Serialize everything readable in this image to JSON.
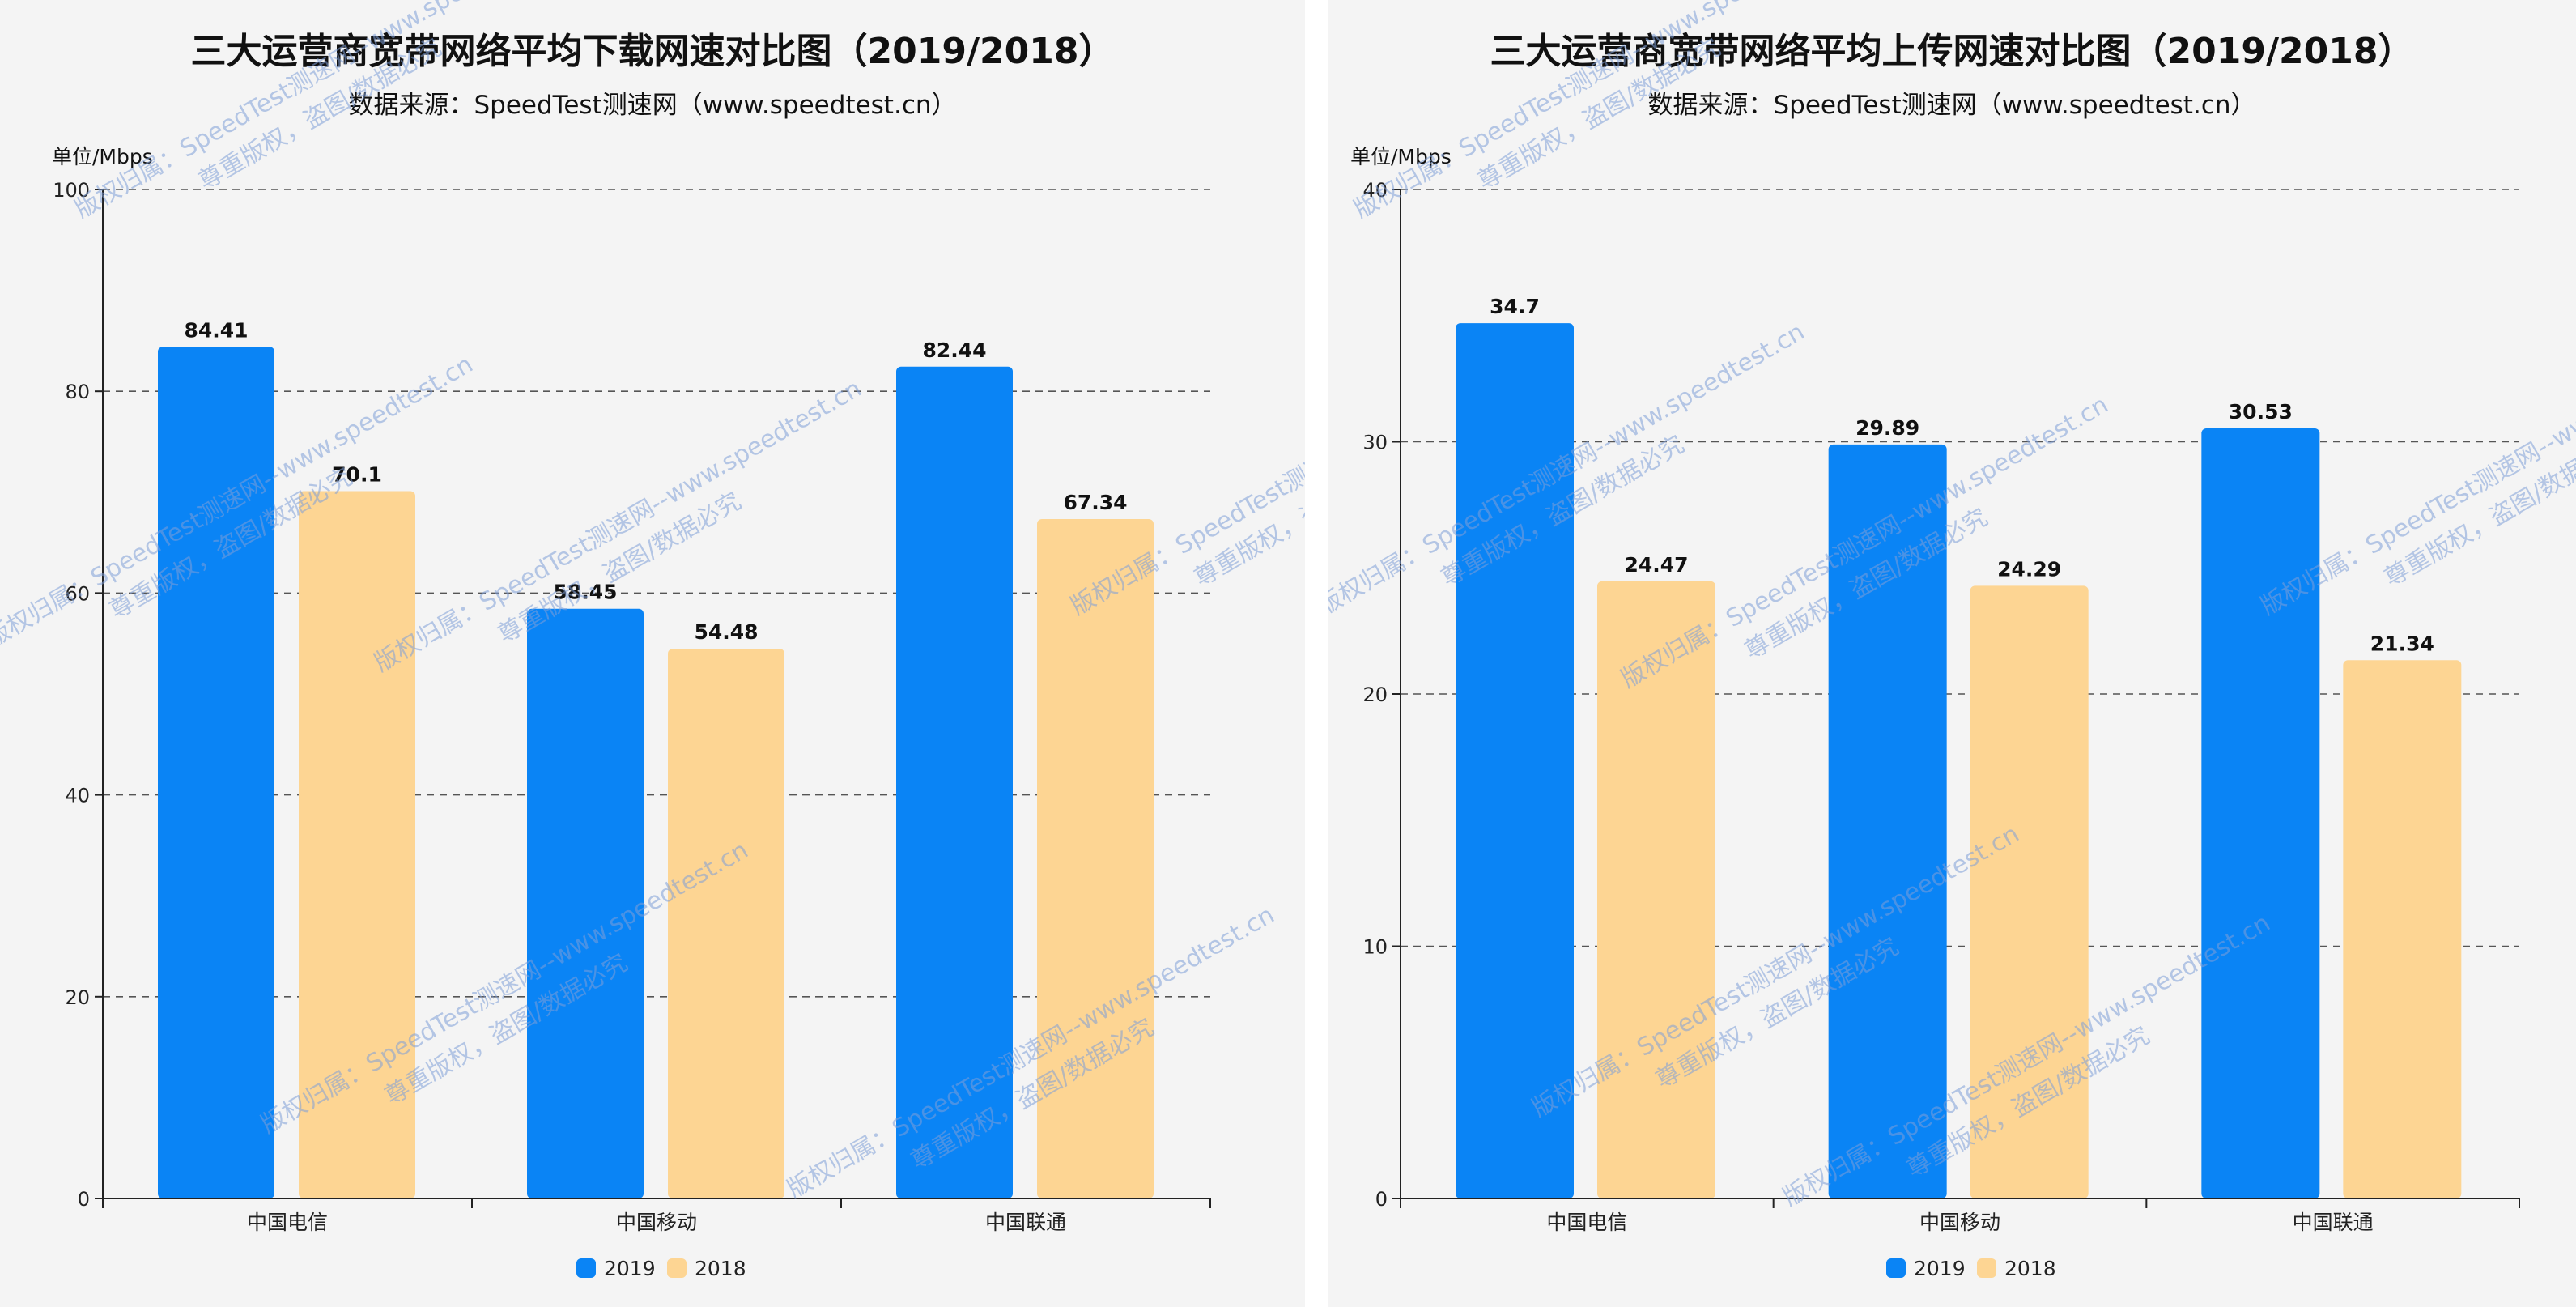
{
  "colors": {
    "series_2019": "#0a84f5",
    "series_2018": "#fdd593"
  },
  "watermark": {
    "line1": "版权归属：SpeedTest测速网--www.speedtest.cn",
    "line2": "尊重版权，盗图/数据必究"
  },
  "chart_data": [
    {
      "type": "bar",
      "title": "三大运营商宽带网络平均下载网速对比图（2019/2018）",
      "subtitle": "数据来源：SpeedTest测速网（www.speedtest.cn）",
      "ylabel": "单位/Mbps",
      "ylim": [
        0,
        100
      ],
      "yticks": [
        0,
        20,
        40,
        60,
        80,
        100
      ],
      "grid": true,
      "legend_position": "bottom",
      "categories": [
        "中国电信",
        "中国移动",
        "中国联通"
      ],
      "series": [
        {
          "name": "2019",
          "values": [
            84.41,
            58.45,
            82.44
          ]
        },
        {
          "name": "2018",
          "values": [
            70.1,
            54.48,
            67.34
          ]
        }
      ]
    },
    {
      "type": "bar",
      "title": "三大运营商宽带网络平均上传网速对比图（2019/2018）",
      "subtitle": "数据来源：SpeedTest测速网（www.speedtest.cn）",
      "ylabel": "单位/Mbps",
      "ylim": [
        0,
        40
      ],
      "yticks": [
        0,
        10,
        20,
        30,
        40
      ],
      "grid": true,
      "legend_position": "bottom",
      "categories": [
        "中国电信",
        "中国移动",
        "中国联通"
      ],
      "series": [
        {
          "name": "2019",
          "values": [
            34.7,
            29.89,
            30.53
          ]
        },
        {
          "name": "2018",
          "values": [
            24.47,
            24.29,
            21.34
          ]
        }
      ]
    }
  ]
}
